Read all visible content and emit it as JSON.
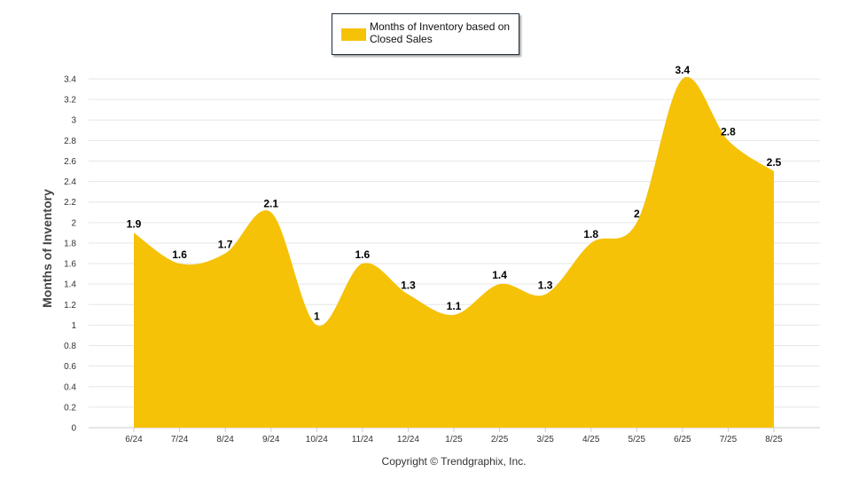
{
  "legend": {
    "label": "Months of Inventory based on Closed Sales"
  },
  "copyright": "Copyright © Trendgraphix, Inc.",
  "colors": {
    "fill": "#F6C207",
    "grid": "#e6e6e6",
    "axis_text": "#333333"
  },
  "chart_data": {
    "type": "area",
    "title": "",
    "xlabel": "",
    "ylabel": "Months of Inventory",
    "categories": [
      "6/24",
      "7/24",
      "8/24",
      "9/24",
      "10/24",
      "11/24",
      "12/24",
      "1/25",
      "2/25",
      "3/25",
      "4/25",
      "5/25",
      "6/25",
      "7/25",
      "8/25"
    ],
    "series": [
      {
        "name": "Months of Inventory based on Closed Sales",
        "values": [
          1.9,
          1.6,
          1.7,
          2.1,
          1,
          1.6,
          1.3,
          1.1,
          1.4,
          1.3,
          1.8,
          2,
          3.4,
          2.8,
          2.5
        ]
      }
    ],
    "ylim": [
      0,
      3.4
    ],
    "yticks": [
      "0",
      "0.2",
      "0.4",
      "0.6",
      "0.8",
      "1",
      "1.2",
      "1.4",
      "1.6",
      "1.8",
      "2",
      "2.2",
      "2.4",
      "2.6",
      "2.8",
      "3",
      "3.2",
      "3.4"
    ],
    "grid": true,
    "legend_position": "top-center",
    "data_labels": true
  }
}
